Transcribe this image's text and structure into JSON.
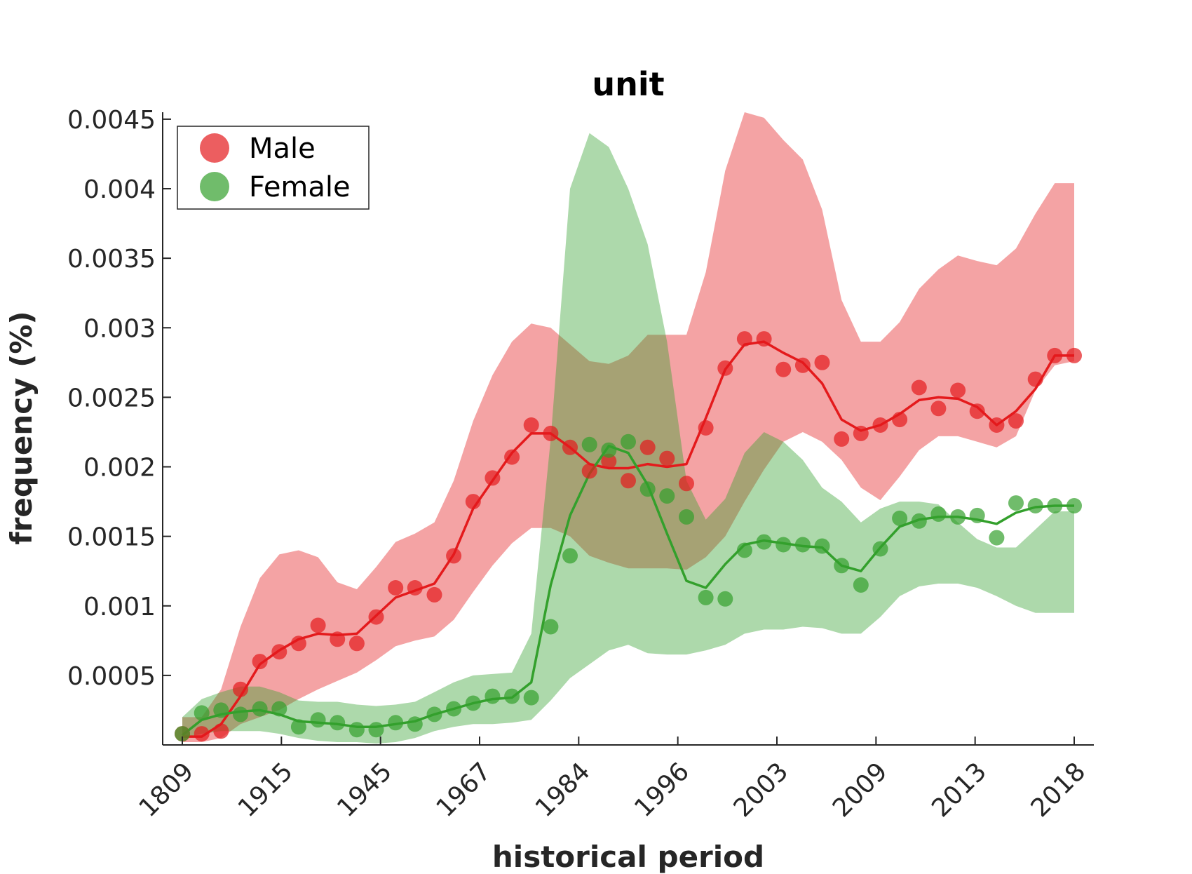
{
  "chart_data": {
    "type": "line",
    "title": "unit",
    "xlabel": "historical period",
    "ylabel": "frequency (%)",
    "x_tick_labels": [
      "1809",
      "1915",
      "1945",
      "1967",
      "1984",
      "1996",
      "2003",
      "2009",
      "2013",
      "2018"
    ],
    "y_ticks": [
      0.0005,
      0.001,
      0.0015,
      0.002,
      0.0025,
      0.003,
      0.0035,
      0.004,
      0.0045
    ],
    "y_tick_labels": [
      "0.0005",
      "0.001",
      "0.0015",
      "0.002",
      "0.0025",
      "0.003",
      "0.0035",
      "0.004",
      "0.0045"
    ],
    "ylim": [
      0,
      0.00455
    ],
    "n_points": 47,
    "legend": {
      "position": "top-left"
    },
    "grid": false,
    "series": [
      {
        "name": "Male",
        "color": "#e41a1c",
        "points": [
          8e-05,
          8e-05,
          0.0001,
          0.0004,
          0.0006,
          0.00067,
          0.00073,
          0.00086,
          0.00076,
          0.00073,
          0.00092,
          0.00113,
          0.00113,
          0.00108,
          0.00136,
          0.00175,
          0.00192,
          0.00207,
          0.0023,
          0.00224,
          0.00214,
          0.00197,
          0.00204,
          0.0019,
          0.00214,
          0.00206,
          0.00188,
          0.00228,
          0.00271,
          0.00292,
          0.00292,
          0.0027,
          0.00273,
          0.00275,
          0.0022,
          0.00224,
          0.0023,
          0.00234,
          0.00257,
          0.00242,
          0.00255,
          0.0024,
          0.0023,
          0.00233,
          0.00263,
          0.0028,
          0.0028
        ],
        "line": [
          6e-05,
          6e-05,
          0.00015,
          0.00035,
          0.00058,
          0.00068,
          0.00076,
          0.0008,
          0.00079,
          0.0008,
          0.00093,
          0.00106,
          0.00111,
          0.00116,
          0.00137,
          0.0017,
          0.0019,
          0.0021,
          0.00224,
          0.00224,
          0.00214,
          0.00202,
          0.00199,
          0.00199,
          0.00202,
          0.002,
          0.00202,
          0.00235,
          0.0027,
          0.00288,
          0.0029,
          0.00282,
          0.00275,
          0.0026,
          0.00234,
          0.00226,
          0.0023,
          0.00238,
          0.00248,
          0.0025,
          0.00249,
          0.00243,
          0.0023,
          0.0024,
          0.00256,
          0.0028,
          0.0028
        ],
        "band_upper": [
          0.0002,
          0.0002,
          0.0004,
          0.00085,
          0.0012,
          0.00137,
          0.0014,
          0.00135,
          0.00117,
          0.00112,
          0.00128,
          0.00146,
          0.00152,
          0.0016,
          0.0019,
          0.00233,
          0.00266,
          0.0029,
          0.00303,
          0.003,
          0.00288,
          0.00276,
          0.00274,
          0.0028,
          0.00295,
          0.00295,
          0.00295,
          0.0034,
          0.00413,
          0.00455,
          0.00451,
          0.00435,
          0.00421,
          0.00385,
          0.0032,
          0.0029,
          0.0029,
          0.00304,
          0.00328,
          0.00342,
          0.00352,
          0.00348,
          0.00345,
          0.00357,
          0.00382,
          0.00404,
          0.00404
        ],
        "band_lower": [
          2e-05,
          2e-05,
          5e-05,
          0.00015,
          0.0002,
          0.00025,
          0.00033,
          0.0004,
          0.00046,
          0.00052,
          0.00061,
          0.00071,
          0.00075,
          0.00078,
          0.0009,
          0.0011,
          0.00129,
          0.00145,
          0.00156,
          0.00156,
          0.0015,
          0.00136,
          0.00131,
          0.00127,
          0.00127,
          0.00127,
          0.00126,
          0.00135,
          0.0015,
          0.00175,
          0.00198,
          0.00218,
          0.00225,
          0.00218,
          0.00205,
          0.00185,
          0.00176,
          0.00193,
          0.00212,
          0.00222,
          0.00222,
          0.00218,
          0.00214,
          0.00222,
          0.00255,
          0.00273,
          0.00276
        ]
      },
      {
        "name": "Female",
        "color": "#33a02c",
        "points": [
          8e-05,
          0.00023,
          0.00025,
          0.00022,
          0.00026,
          0.00026,
          0.00013,
          0.00018,
          0.00016,
          0.00011,
          0.00011,
          0.00016,
          0.00015,
          0.00022,
          0.00026,
          0.0003,
          0.00035,
          0.00035,
          0.00034,
          0.00085,
          0.00136,
          0.00216,
          0.00212,
          0.00218,
          0.00184,
          0.00179,
          0.00164,
          0.00106,
          0.00105,
          0.0014,
          0.00146,
          0.00144,
          0.00144,
          0.00143,
          0.00129,
          0.00115,
          0.00141,
          0.00163,
          0.00161,
          0.00166,
          0.00164,
          0.00165,
          0.00149,
          0.00174,
          0.00172,
          0.00172,
          0.00172
        ],
        "line": [
          7e-05,
          0.00018,
          0.00022,
          0.00024,
          0.00025,
          0.00022,
          0.00017,
          0.00016,
          0.00015,
          0.00013,
          0.00013,
          0.00015,
          0.00017,
          0.00022,
          0.00026,
          0.0003,
          0.00033,
          0.00034,
          0.00045,
          0.00115,
          0.00165,
          0.00195,
          0.00215,
          0.0021,
          0.00187,
          0.00152,
          0.00118,
          0.00113,
          0.0013,
          0.00144,
          0.00147,
          0.00145,
          0.00143,
          0.00142,
          0.00129,
          0.00125,
          0.00142,
          0.00157,
          0.00162,
          0.00164,
          0.00164,
          0.00162,
          0.00159,
          0.00167,
          0.00171,
          0.00172,
          0.00172
        ],
        "band_upper": [
          0.0002,
          0.00033,
          0.00038,
          0.00042,
          0.00042,
          0.00038,
          0.00032,
          0.00031,
          0.00031,
          0.00029,
          0.00028,
          0.00029,
          0.00031,
          0.00038,
          0.00045,
          0.0005,
          0.00051,
          0.00052,
          0.0008,
          0.0022,
          0.004,
          0.0044,
          0.0043,
          0.004,
          0.0036,
          0.0029,
          0.0019,
          0.00162,
          0.00177,
          0.0021,
          0.00225,
          0.00218,
          0.00205,
          0.00185,
          0.00175,
          0.0016,
          0.0017,
          0.00175,
          0.00175,
          0.00173,
          0.0016,
          0.00148,
          0.00142,
          0.00142,
          0.00155,
          0.00168,
          0.00168
        ],
        "band_lower": [
          5e-05,
          8e-05,
          0.0001,
          0.0001,
          0.0001,
          8e-05,
          5e-05,
          3e-05,
          2e-05,
          2e-05,
          1e-05,
          2e-05,
          5e-05,
          0.0001,
          0.00013,
          0.00015,
          0.00015,
          0.00016,
          0.00018,
          0.00032,
          0.00048,
          0.00058,
          0.00068,
          0.00072,
          0.00066,
          0.00065,
          0.00065,
          0.00068,
          0.00072,
          0.0008,
          0.00083,
          0.00083,
          0.00085,
          0.00084,
          0.0008,
          0.0008,
          0.00092,
          0.00107,
          0.00114,
          0.00116,
          0.00116,
          0.00113,
          0.00107,
          0.001,
          0.00095,
          0.00095,
          0.00095
        ]
      }
    ]
  }
}
